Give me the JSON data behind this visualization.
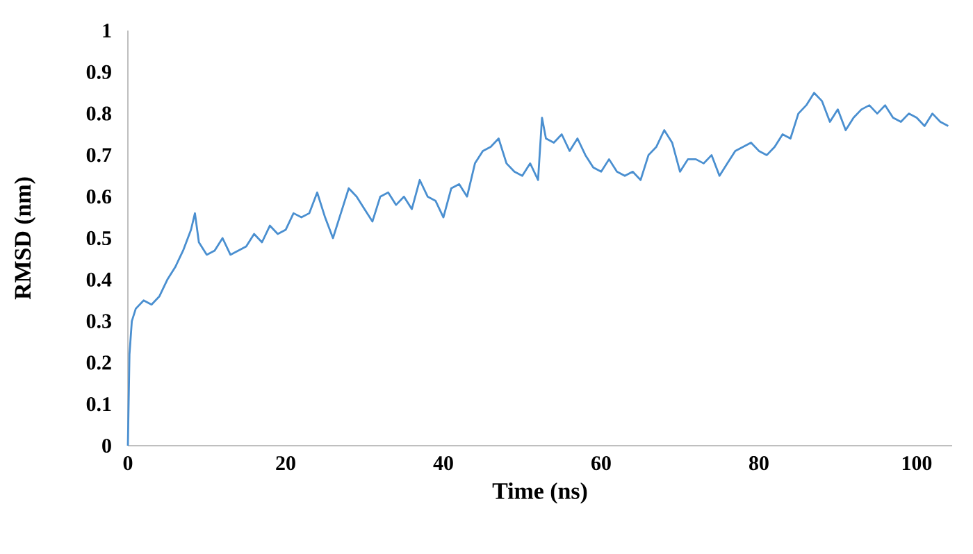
{
  "chart_data": {
    "type": "line",
    "xlabel": "Time (ns)",
    "ylabel": "RMSD (nm)",
    "x": [
      0,
      0.2,
      0.5,
      1,
      2,
      3,
      4,
      5,
      6,
      7,
      8,
      8.5,
      9,
      10,
      11,
      12,
      13,
      14,
      15,
      16,
      17,
      18,
      19,
      20,
      21,
      22,
      23,
      24,
      25,
      26,
      27,
      28,
      29,
      30,
      31,
      32,
      33,
      34,
      35,
      36,
      37,
      38,
      39,
      40,
      41,
      42,
      43,
      44,
      45,
      46,
      47,
      48,
      49,
      50,
      51,
      52,
      52.5,
      53,
      54,
      55,
      56,
      57,
      58,
      59,
      60,
      61,
      62,
      63,
      64,
      65,
      66,
      67,
      68,
      69,
      70,
      71,
      72,
      73,
      74,
      75,
      76,
      77,
      78,
      79,
      80,
      81,
      82,
      83,
      84,
      85,
      86,
      87,
      88,
      89,
      90,
      91,
      92,
      93,
      94,
      95,
      96,
      97,
      98,
      99,
      100,
      101,
      102,
      103,
      104
    ],
    "series": [
      {
        "color": "#4a8fd0",
        "values": [
          0,
          0.22,
          0.3,
          0.33,
          0.35,
          0.34,
          0.36,
          0.4,
          0.43,
          0.47,
          0.52,
          0.56,
          0.49,
          0.46,
          0.47,
          0.5,
          0.46,
          0.47,
          0.48,
          0.51,
          0.49,
          0.53,
          0.51,
          0.52,
          0.56,
          0.55,
          0.56,
          0.61,
          0.55,
          0.5,
          0.56,
          0.62,
          0.6,
          0.57,
          0.54,
          0.6,
          0.61,
          0.58,
          0.6,
          0.57,
          0.64,
          0.6,
          0.59,
          0.55,
          0.62,
          0.63,
          0.6,
          0.68,
          0.71,
          0.72,
          0.74,
          0.68,
          0.66,
          0.65,
          0.68,
          0.64,
          0.79,
          0.74,
          0.73,
          0.75,
          0.71,
          0.74,
          0.7,
          0.67,
          0.66,
          0.69,
          0.66,
          0.65,
          0.66,
          0.64,
          0.7,
          0.72,
          0.76,
          0.73,
          0.66,
          0.69,
          0.69,
          0.68,
          0.7,
          0.65,
          0.68,
          0.71,
          0.72,
          0.73,
          0.71,
          0.7,
          0.72,
          0.75,
          0.74,
          0.8,
          0.82,
          0.85,
          0.83,
          0.78,
          0.81,
          0.76,
          0.79,
          0.81,
          0.82,
          0.8,
          0.82,
          0.79,
          0.78,
          0.8,
          0.79,
          0.77,
          0.8,
          0.78,
          0.77
        ]
      }
    ],
    "xlim": [
      0,
      104.5
    ],
    "ylim": [
      0,
      1
    ],
    "xticks": [
      0,
      20,
      40,
      60,
      80,
      100
    ],
    "yticks": [
      0,
      0.1,
      0.2,
      0.3,
      0.4,
      0.5,
      0.6,
      0.7,
      0.8,
      0.9,
      1
    ]
  }
}
